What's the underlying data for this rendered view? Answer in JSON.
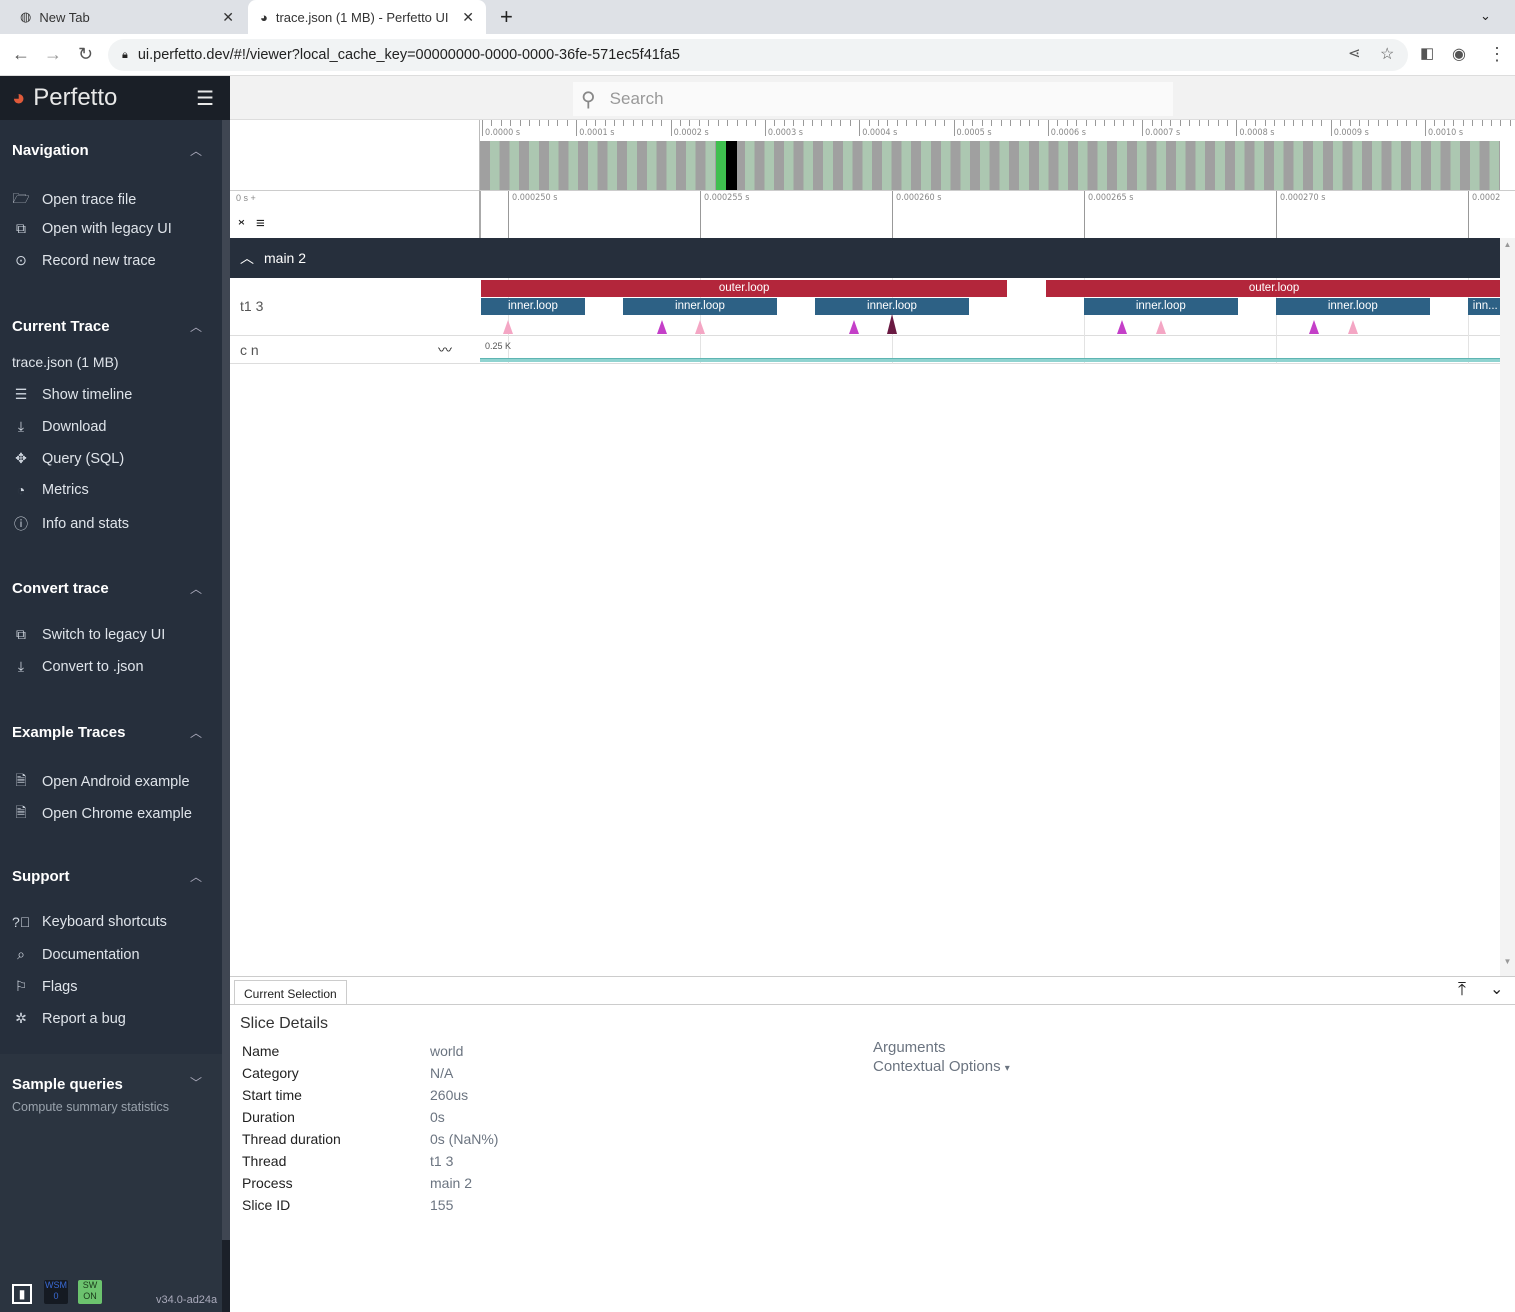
{
  "browser": {
    "tabs": [
      {
        "title": "New Tab"
      },
      {
        "title": "trace.json (1 MB) - Perfetto UI"
      }
    ],
    "url": "ui.perfetto.dev/#!/viewer?local_cache_key=00000000-0000-0000-36fe-571ec5f41fa5"
  },
  "app": {
    "name": "Perfetto",
    "search_placeholder": "Search",
    "version": "v34.0-ad24a",
    "wsm_label": "WSM",
    "wsm_value": "0",
    "sw_label": "SW",
    "sw_value": "ON"
  },
  "sidebar": {
    "navigation": {
      "title": "Navigation",
      "items": [
        {
          "label": "Open trace file",
          "icon": "folder-icon"
        },
        {
          "label": "Open with legacy UI",
          "icon": "filter-none-icon"
        },
        {
          "label": "Record new trace",
          "icon": "record-icon"
        }
      ]
    },
    "current_trace": {
      "title": "Current Trace",
      "file": "trace.json (1 MB)",
      "items": [
        {
          "label": "Show timeline",
          "icon": "timeline-icon"
        },
        {
          "label": "Download",
          "icon": "download-icon"
        },
        {
          "label": "Query (SQL)",
          "icon": "query-icon"
        },
        {
          "label": "Metrics",
          "icon": "speedometer-icon"
        },
        {
          "label": "Info and stats",
          "icon": "info-icon"
        }
      ]
    },
    "convert": {
      "title": "Convert trace",
      "items": [
        {
          "label": "Switch to legacy UI",
          "icon": "filter-none-icon"
        },
        {
          "label": "Convert to .json",
          "icon": "download-icon"
        }
      ]
    },
    "examples": {
      "title": "Example Traces",
      "items": [
        {
          "label": "Open Android example",
          "icon": "description-icon"
        },
        {
          "label": "Open Chrome example",
          "icon": "description-icon"
        }
      ]
    },
    "support": {
      "title": "Support",
      "items": [
        {
          "label": "Keyboard shortcuts",
          "icon": "help-icon"
        },
        {
          "label": "Documentation",
          "icon": "find-in-page-icon"
        },
        {
          "label": "Flags",
          "icon": "flag-icon"
        },
        {
          "label": "Report a bug",
          "icon": "bug-icon"
        }
      ]
    },
    "sample_queries": {
      "title": "Sample queries",
      "items": [
        {
          "label": "Compute summary statistics"
        }
      ]
    }
  },
  "overview": {
    "ticks": [
      "0.0000 s",
      "0.0001 s",
      "0.0002 s",
      "0.0003 s",
      "0.0004 s",
      "0.0005 s",
      "0.0006 s",
      "0.0007 s",
      "0.0008 s",
      "0.0009 s",
      "0.0010 s"
    ]
  },
  "timeline": {
    "offset_label": "0 s +",
    "ticks": [
      "0.000250 s",
      "0.000255 s",
      "0.000260 s",
      "0.000265 s",
      "0.000270 s",
      "0.0002"
    ],
    "group": {
      "name": "main 2"
    },
    "thread_track": {
      "name": "t1 3",
      "slices": [
        {
          "name": "outer.loop",
          "depth": 0,
          "start_ns": 249.3,
          "end_ns": 263.0
        },
        {
          "name": "outer.loop",
          "depth": 0,
          "start_ns": 264.0,
          "end_ns": 275.9
        },
        {
          "name": "inner.loop",
          "depth": 1,
          "start_ns": 249.3,
          "end_ns": 252
        },
        {
          "name": "inner.loop",
          "depth": 1,
          "start_ns": 253,
          "end_ns": 257
        },
        {
          "name": "inner.loop",
          "depth": 1,
          "start_ns": 258,
          "end_ns": 262
        },
        {
          "name": "inner.loop",
          "depth": 1,
          "start_ns": 265,
          "end_ns": 269
        },
        {
          "name": "inner.loop",
          "depth": 1,
          "start_ns": 270,
          "end_ns": 274
        },
        {
          "name": "inn...",
          "depth": 1,
          "start_ns": 275,
          "end_ns": 275.9
        }
      ],
      "instants": [
        {
          "t_ns": 250,
          "color": "#f4a6c4"
        },
        {
          "t_ns": 254,
          "color": "#c43fc8"
        },
        {
          "t_ns": 255,
          "color": "#f4a6c4"
        },
        {
          "t_ns": 259,
          "color": "#c43fc8"
        },
        {
          "t_ns": 260,
          "color": "#6a1a42",
          "selected": true
        },
        {
          "t_ns": 266,
          "color": "#c43fc8"
        },
        {
          "t_ns": 267,
          "color": "#f4a6c4"
        },
        {
          "t_ns": 271,
          "color": "#c43fc8"
        },
        {
          "t_ns": 272,
          "color": "#f4a6c4"
        }
      ]
    },
    "counter_track": {
      "name": "c n",
      "max_label": "0.25 K"
    },
    "colors": {
      "outer": "#b3263b",
      "inner": "#2d6185",
      "counter": "#8fd3d0"
    }
  },
  "details": {
    "tab": "Current Selection",
    "title": "Slice Details",
    "rows": [
      {
        "k": "Name",
        "v": "world"
      },
      {
        "k": "Category",
        "v": "N/A"
      },
      {
        "k": "Start time",
        "v": "260us"
      },
      {
        "k": "Duration",
        "v": "0s"
      },
      {
        "k": "Thread duration",
        "v": "0s (NaN%)"
      },
      {
        "k": "Thread",
        "v": "t1 3"
      },
      {
        "k": "Process",
        "v": "main 2"
      },
      {
        "k": "Slice ID",
        "v": "155"
      }
    ],
    "arguments": "Arguments",
    "contextual": "Contextual Options"
  }
}
